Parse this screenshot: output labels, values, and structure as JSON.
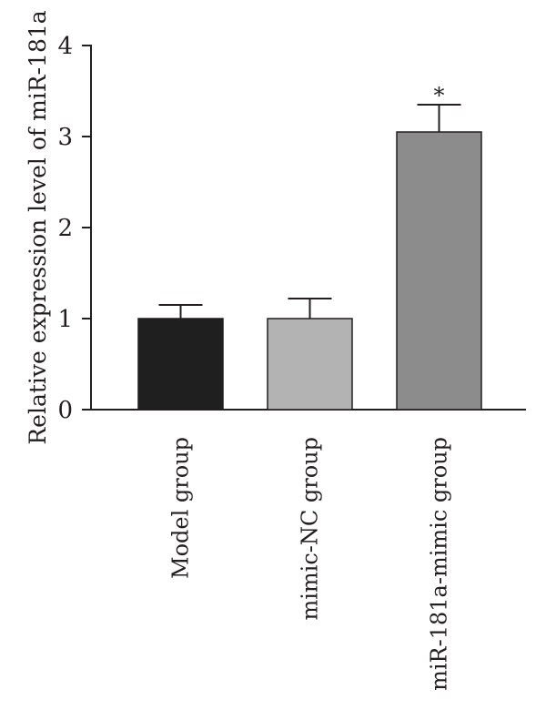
{
  "chart_data": {
    "type": "bar",
    "title": "",
    "xlabel": "",
    "ylabel": "Relative expression level of miR-181a",
    "ylim": [
      0,
      4
    ],
    "yticks": [
      "0",
      "1",
      "2",
      "3",
      "4"
    ],
    "grid": false,
    "categories": [
      "Model group",
      "mimic-NC group",
      "miR-181a-mimic group"
    ],
    "values": [
      1.0,
      1.0,
      3.05
    ],
    "errors": [
      0.15,
      0.22,
      0.3
    ],
    "bar_colors": [
      "#1f1f1f",
      "#b3b3b3",
      "#8c8c8c"
    ],
    "annotations": [
      "",
      "",
      "*"
    ]
  }
}
